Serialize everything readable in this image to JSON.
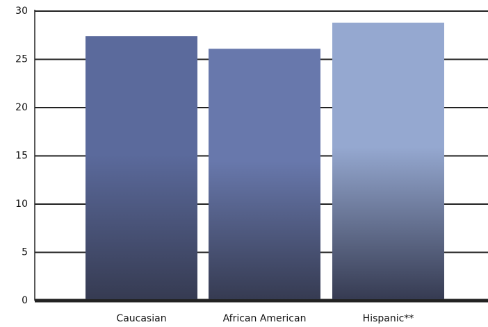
{
  "chart_data": {
    "type": "bar",
    "categories": [
      "Caucasian",
      "African American",
      "Hispanic**"
    ],
    "values": [
      27.4,
      26.1,
      28.8
    ],
    "colors": [
      "#5b6a9c",
      "#6878ac",
      "#95a8d0"
    ],
    "ylim": [
      0,
      30
    ],
    "yticks": [
      0,
      5,
      10,
      15,
      20,
      25,
      30
    ],
    "grid": true
  }
}
